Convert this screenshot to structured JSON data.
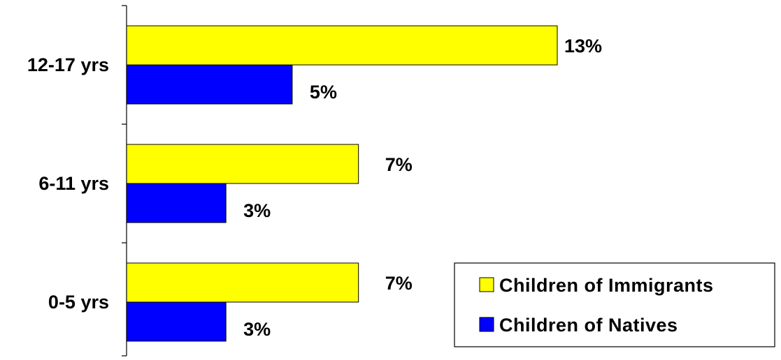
{
  "chart_data": {
    "type": "bar",
    "orientation": "horizontal",
    "title": "",
    "xlabel": "",
    "ylabel": "",
    "categories": [
      "12-17 yrs",
      "6-11 yrs",
      "0-5 yrs"
    ],
    "series": [
      {
        "name": "Children of Immigrants",
        "color": "#ffff00",
        "values": [
          13,
          7,
          7
        ],
        "labels": [
          "13%",
          "7%",
          "7%"
        ]
      },
      {
        "name": "Children of Natives",
        "color": "#0000ff",
        "values": [
          5,
          3,
          3
        ],
        "labels": [
          "5%",
          "3%",
          "3%"
        ]
      }
    ],
    "xlim": [
      0,
      13
    ],
    "grid": false,
    "legend_position": "bottom-right"
  }
}
